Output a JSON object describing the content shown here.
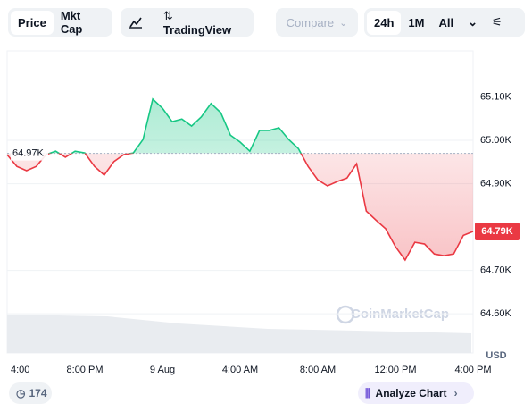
{
  "toolbar": {
    "tabs": [
      "Price",
      "Mkt Cap"
    ],
    "tradingview": "TradingView",
    "compare": "Compare",
    "ranges": [
      "24h",
      "1M",
      "All"
    ]
  },
  "chart_data": {
    "type": "line",
    "categories": [
      "4:00",
      null,
      null,
      null,
      null,
      null,
      null,
      null,
      "8:00 PM",
      null,
      null,
      null,
      null,
      null,
      null,
      null,
      "9 Aug",
      null,
      null,
      null,
      null,
      null,
      null,
      null,
      "4:00 AM",
      null,
      null,
      null,
      null,
      null,
      null,
      null,
      "8:00 AM",
      null,
      null,
      null,
      null,
      null,
      null,
      null,
      "12:00 PM",
      null,
      null,
      null,
      null,
      null,
      null,
      null,
      "4:00 PM"
    ],
    "values": [
      64967,
      64940,
      64930,
      64940,
      64967,
      64975,
      64961,
      64975,
      64971,
      64940,
      64920,
      64951,
      64967,
      64971,
      65002,
      65095,
      65074,
      65043,
      65049,
      65033,
      65054,
      65085,
      65064,
      65012,
      64996,
      64975,
      65023,
      65023,
      65029,
      65002,
      64981,
      64940,
      64909,
      64895,
      64905,
      64913,
      64946,
      64837,
      64816,
      64796,
      64755,
      64724,
      64765,
      64761,
      64738,
      64734,
      64738,
      64781,
      64790
    ],
    "value_labels": [
      null,
      null,
      null,
      null,
      null,
      null,
      null,
      null,
      null,
      null,
      null,
      null,
      null,
      null,
      null,
      null,
      null,
      null,
      null,
      null,
      null,
      null,
      null,
      null,
      null,
      null,
      null,
      null,
      null,
      null,
      null,
      null,
      null,
      null,
      null,
      null,
      null,
      null,
      null,
      null,
      null,
      null,
      null,
      null,
      null,
      null,
      null,
      null,
      "64.79K"
    ],
    "baseline": {
      "value": 64970,
      "label": "64.97K"
    },
    "up_color": "#16c784",
    "down_color": "#ea3943",
    "ylim": [
      64520,
      65200
    ],
    "yticks": [
      {
        "value": 64600,
        "label": "64.60K"
      },
      {
        "value": 64700,
        "label": "64.70K"
      },
      {
        "value": 64900,
        "label": "64.90K"
      },
      {
        "value": 65000,
        "label": "65.00K"
      },
      {
        "value": 65100,
        "label": "65.10K"
      }
    ],
    "y_unit": "USD",
    "watermark": "CoinMarketCap",
    "grid": true
  },
  "footer": {
    "comments": "174",
    "analyze": "Analyze Chart"
  }
}
